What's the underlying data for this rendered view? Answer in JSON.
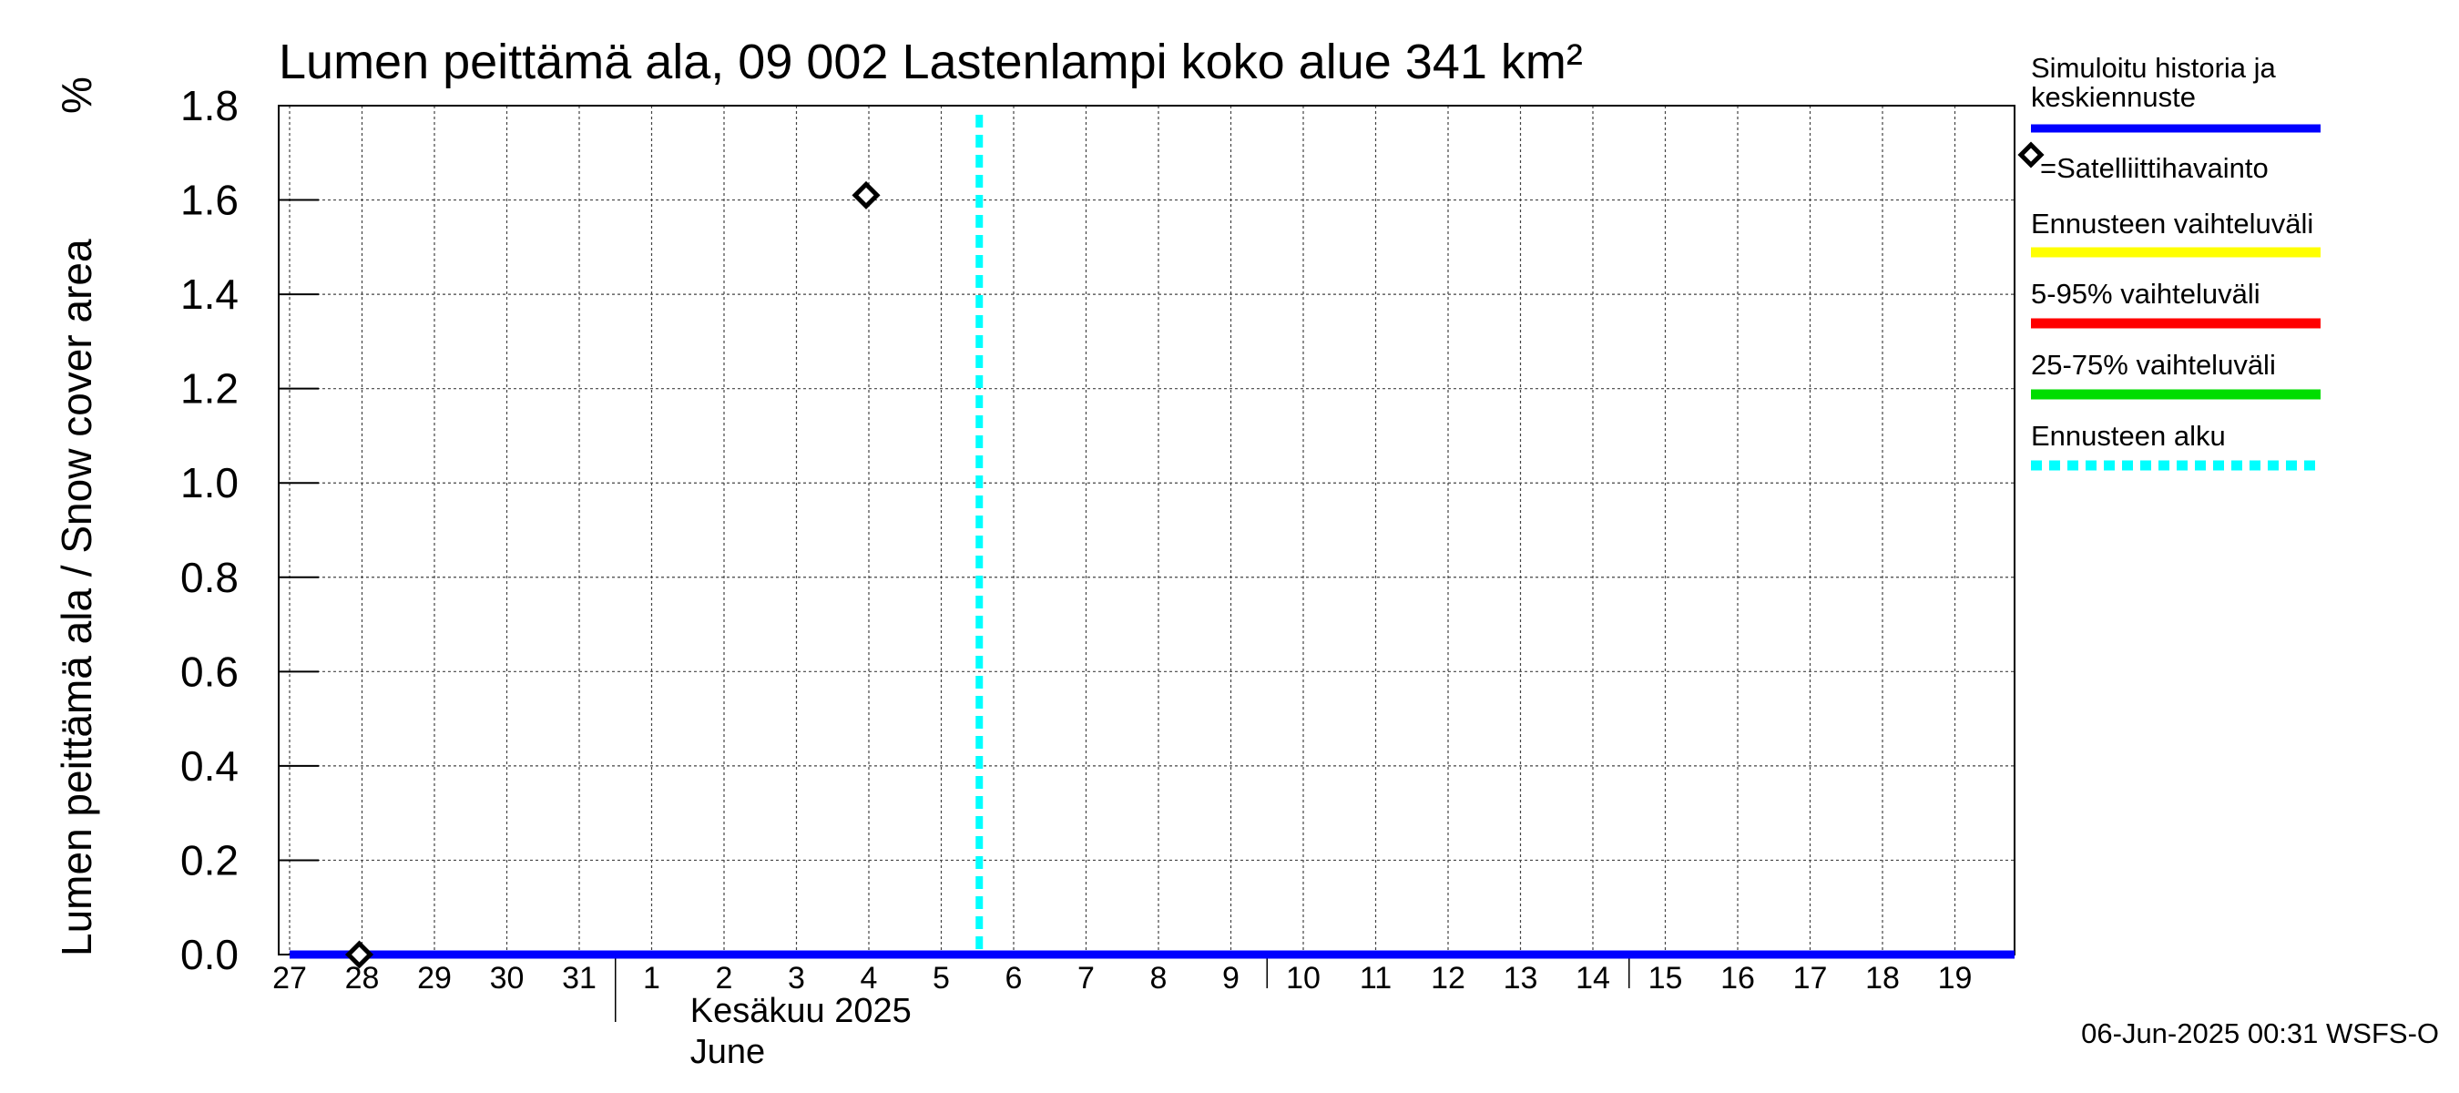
{
  "chart_data": {
    "type": "line",
    "title": "Lumen peittämä ala, 09 002 Lastenlampi koko alue 341 km²",
    "ylabel": "Lumen peittämä ala / Snow cover area",
    "yunit": "%",
    "ylim": [
      0,
      1.8
    ],
    "yticks": [
      "0.0",
      "0.2",
      "0.4",
      "0.6",
      "0.8",
      "1.0",
      "1.2",
      "1.4",
      "1.6",
      "1.8"
    ],
    "x_range_days": [
      0,
      24
    ],
    "x_ticks": [
      {
        "day": 0,
        "label": "27"
      },
      {
        "day": 1,
        "label": "28"
      },
      {
        "day": 2,
        "label": "29"
      },
      {
        "day": 3,
        "label": "30"
      },
      {
        "day": 4,
        "label": "31"
      },
      {
        "day": 5,
        "label": "1"
      },
      {
        "day": 6,
        "label": "2"
      },
      {
        "day": 7,
        "label": "3"
      },
      {
        "day": 8,
        "label": "4"
      },
      {
        "day": 9,
        "label": "5"
      },
      {
        "day": 10,
        "label": "6"
      },
      {
        "day": 11,
        "label": "7"
      },
      {
        "day": 12,
        "label": "8"
      },
      {
        "day": 13,
        "label": "9"
      },
      {
        "day": 14,
        "label": "10"
      },
      {
        "day": 15,
        "label": "11"
      },
      {
        "day": 16,
        "label": "12"
      },
      {
        "day": 17,
        "label": "13"
      },
      {
        "day": 18,
        "label": "14"
      },
      {
        "day": 19,
        "label": "15"
      },
      {
        "day": 20,
        "label": "16"
      },
      {
        "day": 21,
        "label": "17"
      },
      {
        "day": 22,
        "label": "18"
      },
      {
        "day": 23,
        "label": "19"
      }
    ],
    "month_label_fi": "Kesäkuu  2025",
    "month_label_en": "June",
    "month_start_day": 5,
    "week_marks": [
      14,
      19
    ],
    "series": [
      {
        "name": "Simuloitu historia ja keskiennuste",
        "color": "#0000ff",
        "x": [
          0,
          24
        ],
        "y": [
          0,
          0
        ]
      }
    ],
    "satellite_obs": [
      {
        "day": 1,
        "value": 0.0
      },
      {
        "day": 8,
        "value": 1.61
      }
    ],
    "forecast_start_day": 10,
    "legend": [
      {
        "label_line1": "Simuloitu historia ja",
        "label_line2": "keskiennuste",
        "color": "#0000ff",
        "style": "solid"
      },
      {
        "label": "=Satelliittihavainto",
        "style": "marker"
      },
      {
        "label": "Ennusteen vaihteluväli",
        "color": "#ffff00",
        "style": "solid"
      },
      {
        "label": "5-95% vaihteluväli",
        "color": "#ff0000",
        "style": "solid"
      },
      {
        "label": "25-75% vaihteluväli",
        "color": "#00dd00",
        "style": "solid"
      },
      {
        "label": "Ennusteen alku",
        "color": "#00ffff",
        "style": "dashed"
      }
    ],
    "footer": "06-Jun-2025 00:31 WSFS-O"
  }
}
